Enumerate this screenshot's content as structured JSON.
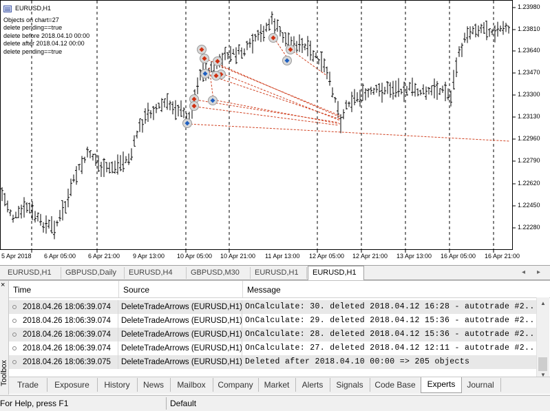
{
  "chart": {
    "symbol": "EURUSD,H1",
    "info_lines": [
      "Objects on chart=27",
      "delete pending==true",
      "delete before 2018.04.10 00:00",
      "delete after 2018.04.12 00:00",
      "delete pending==true"
    ],
    "price_labels": [
      "1.23980",
      "1.23810",
      "1.23640",
      "1.23470",
      "1.23300",
      "1.23130",
      "1.22960",
      "1.22790",
      "1.22620",
      "1.22450",
      "1.22280"
    ],
    "time_labels": [
      "5 Apr 2018",
      "6 Apr 05:00",
      "6 Apr 21:00",
      "9 Apr 13:00",
      "10 Apr 05:00",
      "10 Apr 21:00",
      "11 Apr 13:00",
      "12 Apr 05:00",
      "12 Apr 21:00",
      "13 Apr 13:00",
      "16 Apr 05:00",
      "16 Apr 21:00"
    ],
    "colors": {
      "bars": "#000000",
      "grid": "#000000",
      "arrow_buy": "#2060c0",
      "arrow_sell": "#d03010",
      "trade_line": "#d04020"
    }
  },
  "chart_tabs": {
    "items": [
      "EURUSD,H1",
      "GBPUSD,Daily",
      "EURUSD,H4",
      "GBPUSD,M30",
      "EURUSD,H1",
      "EURUSD,H1"
    ],
    "active_index": 5,
    "scroll_left": "◂",
    "scroll_right": "▸"
  },
  "toolbox": {
    "title": "Toolbox",
    "close_icon": "×",
    "columns": {
      "time": "Time",
      "source": "Source",
      "message": "Message"
    },
    "rows": [
      {
        "time": "2018.04.26 18:06:39.074",
        "source": "DeleteTradeArrows (EURUSD,H1)",
        "message": "OnCalculate: 30. deleted 2018.04.12 16:28 - autotrade #2..."
      },
      {
        "time": "2018.04.26 18:06:39.074",
        "source": "DeleteTradeArrows (EURUSD,H1)",
        "message": "OnCalculate: 29. deleted 2018.04.12 15:36 - autotrade #2..."
      },
      {
        "time": "2018.04.26 18:06:39.074",
        "source": "DeleteTradeArrows (EURUSD,H1)",
        "message": "OnCalculate: 28. deleted 2018.04.12 15:36 - autotrade #2..."
      },
      {
        "time": "2018.04.26 18:06:39.074",
        "source": "DeleteTradeArrows (EURUSD,H1)",
        "message": "OnCalculate: 27. deleted 2018.04.12 12:11 - autotrade #2..."
      },
      {
        "time": "2018.04.26 18:06:39.075",
        "source": "DeleteTradeArrows (EURUSD,H1)",
        "message": "Deleted after 2018.04.10 00:00 => 205 objects"
      }
    ],
    "bottom_tabs": [
      "Trade",
      "Exposure",
      "History",
      "News",
      "Mailbox",
      "Company",
      "Market",
      "Alerts",
      "Signals",
      "Code Base",
      "Experts",
      "Journal"
    ],
    "active_tab": "Experts"
  },
  "status_bar": {
    "help": "For Help, press F1",
    "profile": "Default"
  }
}
